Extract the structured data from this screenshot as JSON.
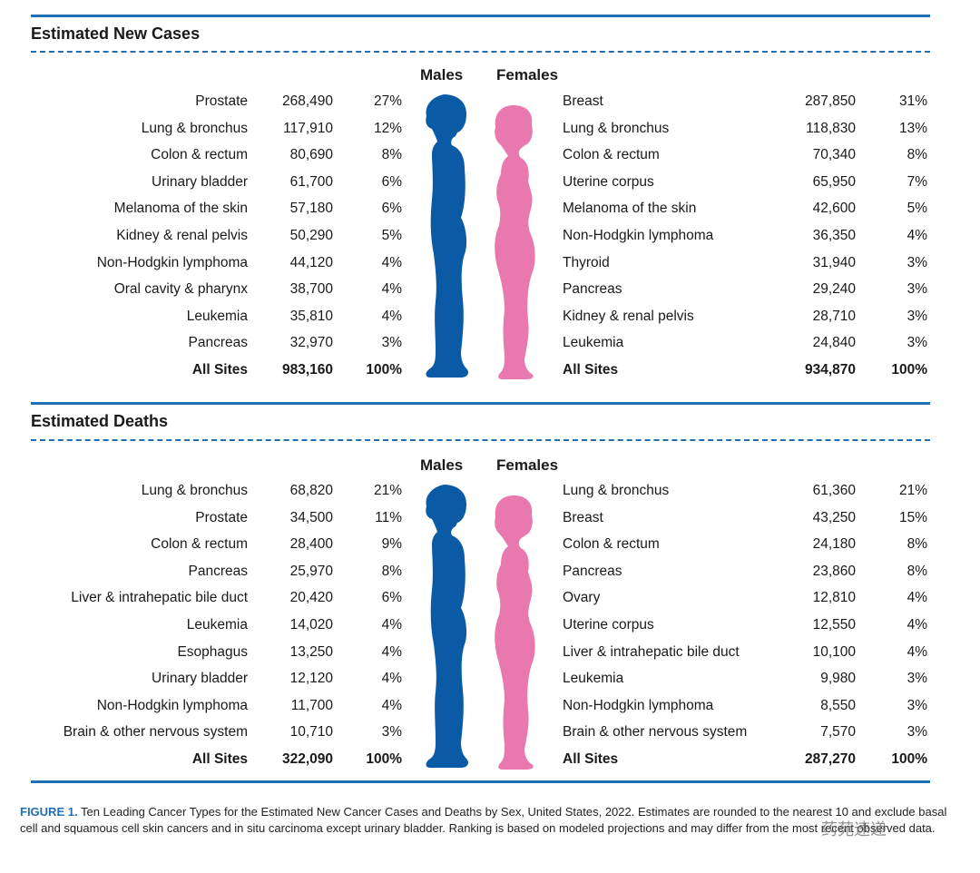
{
  "colors": {
    "accent": "#1f6fb5",
    "males": "#0b5aa6",
    "females": "#e878ad"
  },
  "chart_data": [
    {
      "type": "table",
      "title": "Estimated New Cases",
      "males_label": "Males",
      "females_label": "Females",
      "males": [
        {
          "site": "Prostate",
          "count": "268,490",
          "pct": "27%"
        },
        {
          "site": "Lung & bronchus",
          "count": "117,910",
          "pct": "12%"
        },
        {
          "site": "Colon & rectum",
          "count": "80,690",
          "pct": "8%"
        },
        {
          "site": "Urinary bladder",
          "count": "61,700",
          "pct": "6%"
        },
        {
          "site": "Melanoma of the skin",
          "count": "57,180",
          "pct": "6%"
        },
        {
          "site": "Kidney & renal pelvis",
          "count": "50,290",
          "pct": "5%"
        },
        {
          "site": "Non-Hodgkin lymphoma",
          "count": "44,120",
          "pct": "4%"
        },
        {
          "site": "Oral cavity & pharynx",
          "count": "38,700",
          "pct": "4%"
        },
        {
          "site": "Leukemia",
          "count": "35,810",
          "pct": "4%"
        },
        {
          "site": "Pancreas",
          "count": "32,970",
          "pct": "3%"
        },
        {
          "site": "All Sites",
          "count": "983,160",
          "pct": "100%"
        }
      ],
      "females": [
        {
          "site": "Breast",
          "count": "287,850",
          "pct": "31%"
        },
        {
          "site": "Lung & bronchus",
          "count": "118,830",
          "pct": "13%"
        },
        {
          "site": "Colon & rectum",
          "count": "70,340",
          "pct": "8%"
        },
        {
          "site": "Uterine corpus",
          "count": "65,950",
          "pct": "7%"
        },
        {
          "site": "Melanoma of the skin",
          "count": "42,600",
          "pct": "5%"
        },
        {
          "site": "Non-Hodgkin lymphoma",
          "count": "36,350",
          "pct": "4%"
        },
        {
          "site": "Thyroid",
          "count": "31,940",
          "pct": "3%"
        },
        {
          "site": "Pancreas",
          "count": "29,240",
          "pct": "3%"
        },
        {
          "site": "Kidney & renal pelvis",
          "count": "28,710",
          "pct": "3%"
        },
        {
          "site": "Leukemia",
          "count": "24,840",
          "pct": "3%"
        },
        {
          "site": "All Sites",
          "count": "934,870",
          "pct": "100%"
        }
      ]
    },
    {
      "type": "table",
      "title": "Estimated Deaths",
      "males_label": "Males",
      "females_label": "Females",
      "males": [
        {
          "site": "Lung & bronchus",
          "count": "68,820",
          "pct": "21%"
        },
        {
          "site": "Prostate",
          "count": "34,500",
          "pct": "11%"
        },
        {
          "site": "Colon & rectum",
          "count": "28,400",
          "pct": "9%"
        },
        {
          "site": "Pancreas",
          "count": "25,970",
          "pct": "8%"
        },
        {
          "site": "Liver & intrahepatic bile duct",
          "count": "20,420",
          "pct": "6%"
        },
        {
          "site": "Leukemia",
          "count": "14,020",
          "pct": "4%"
        },
        {
          "site": "Esophagus",
          "count": "13,250",
          "pct": "4%"
        },
        {
          "site": "Urinary bladder",
          "count": "12,120",
          "pct": "4%"
        },
        {
          "site": "Non-Hodgkin lymphoma",
          "count": "11,700",
          "pct": "4%"
        },
        {
          "site": "Brain & other nervous system",
          "count": "10,710",
          "pct": "3%"
        },
        {
          "site": "All Sites",
          "count": "322,090",
          "pct": "100%"
        }
      ],
      "females": [
        {
          "site": "Lung & bronchus",
          "count": "61,360",
          "pct": "21%"
        },
        {
          "site": "Breast",
          "count": "43,250",
          "pct": "15%"
        },
        {
          "site": "Colon & rectum",
          "count": "24,180",
          "pct": "8%"
        },
        {
          "site": "Pancreas",
          "count": "23,860",
          "pct": "8%"
        },
        {
          "site": "Ovary",
          "count": "12,810",
          "pct": "4%"
        },
        {
          "site": "Uterine corpus",
          "count": "12,550",
          "pct": "4%"
        },
        {
          "site": "Liver & intrahepatic bile duct",
          "count": "10,100",
          "pct": "4%"
        },
        {
          "site": "Leukemia",
          "count": "9,980",
          "pct": "3%"
        },
        {
          "site": "Non-Hodgkin lymphoma",
          "count": "8,550",
          "pct": "3%"
        },
        {
          "site": "Brain & other nervous system",
          "count": "7,570",
          "pct": "3%"
        },
        {
          "site": "All Sites",
          "count": "287,270",
          "pct": "100%"
        }
      ]
    }
  ],
  "caption": {
    "label": "FIGURE 1.",
    "text": "Ten Leading Cancer Types for the Estimated New Cancer Cases and Deaths by Sex, United States, 2022. Estimates are rounded to the nearest 10 and exclude basal cell and squamous cell skin cancers and in situ carcinoma except urinary bladder. Ranking is based on modeled projections and may differ from the most recent observed data."
  },
  "watermark": "药苑速递"
}
